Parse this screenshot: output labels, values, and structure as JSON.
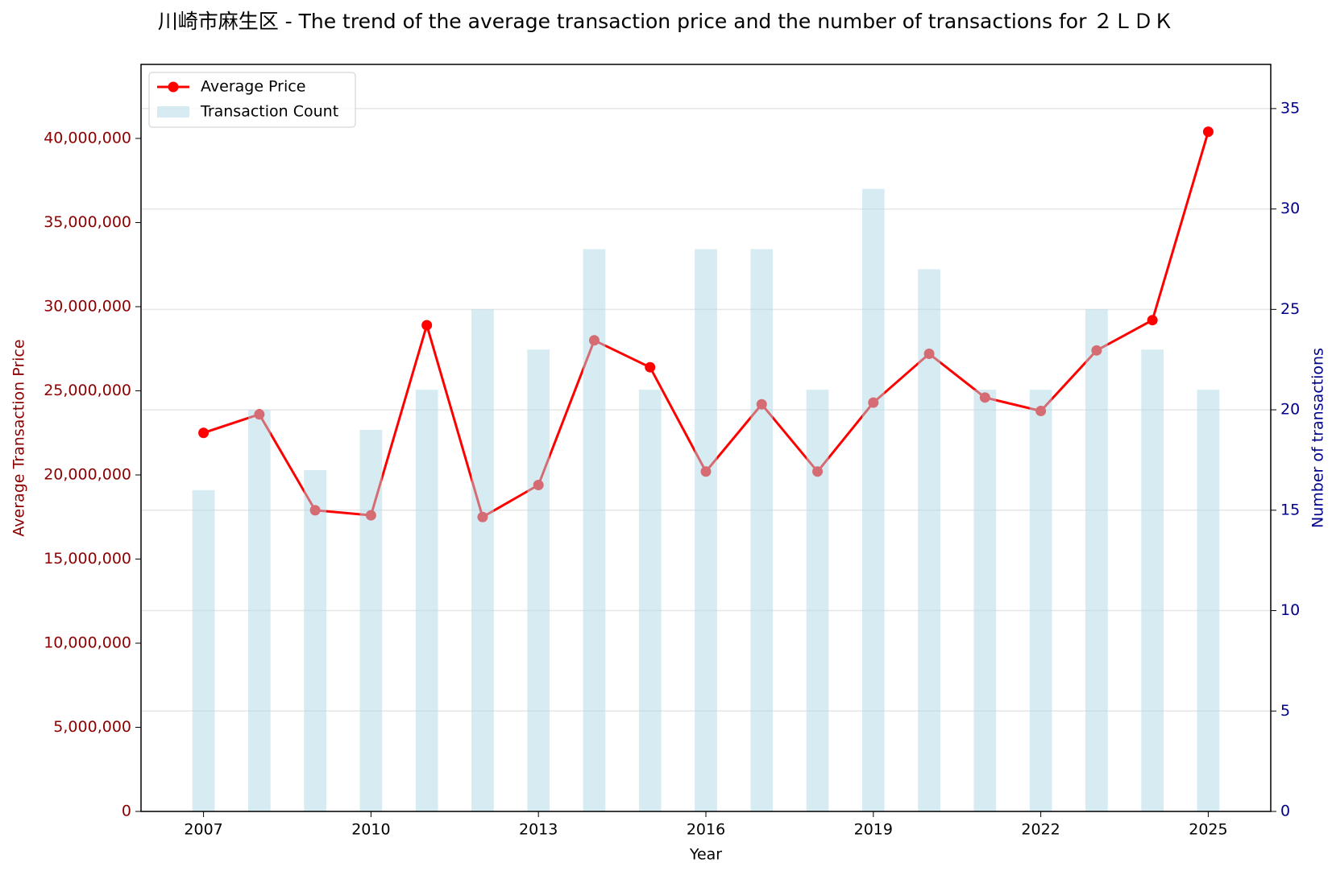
{
  "chart_data": {
    "type": "bar-line",
    "title": "川崎市麻生区 - The trend of the average transaction price and the number of transactions for ２ＬＤＫ",
    "x_label": "Year",
    "y_label": "Average Transaction Price",
    "y2_label": "Number of transactions",
    "x": [
      2007,
      2008,
      2009,
      2010,
      2011,
      2012,
      2013,
      2014,
      2015,
      2016,
      2017,
      2018,
      2019,
      2020,
      2021,
      2022,
      2023,
      2024,
      2025
    ],
    "series": [
      {
        "name": "Average Price",
        "type": "line",
        "color": "#ff0000",
        "values": [
          22500000,
          23600000,
          17900000,
          17600000,
          28900000,
          17500000,
          19400000,
          28000000,
          26400000,
          20200000,
          24200000,
          20200000,
          24300000,
          27200000,
          24600000,
          23800000,
          27400000,
          29200000,
          40400000
        ]
      },
      {
        "name": "Transaction Count",
        "type": "bar",
        "axis": "y2",
        "color": "#add8e6",
        "values": [
          16,
          20,
          17,
          19,
          21,
          25,
          23,
          28,
          21,
          28,
          28,
          21,
          31,
          27,
          21,
          21,
          25,
          23,
          21
        ]
      }
    ],
    "xlim": [
      2005.88,
      2026.12
    ],
    "xticks": [
      2007,
      2010,
      2013,
      2016,
      2019,
      2022,
      2025
    ],
    "ylim": [
      0,
      44400000
    ],
    "yticks": [
      0,
      {
        "value": 5000000,
        "label": "5,000,000"
      },
      {
        "value": 10000000,
        "label": "10,000,000"
      },
      {
        "value": 15000000,
        "label": "15,000,000"
      },
      {
        "value": 20000000,
        "label": "20,000,000"
      },
      {
        "value": 25000000,
        "label": "25,000,000"
      },
      {
        "value": 30000000,
        "label": "30,000,000"
      },
      {
        "value": 35000000,
        "label": "35,000,000"
      },
      {
        "value": 40000000,
        "label": "40,000,000"
      }
    ],
    "y2lim": [
      0,
      37.2
    ],
    "y2ticks": [
      0,
      5,
      10,
      15,
      20,
      25,
      30,
      35
    ],
    "grid": "y2",
    "legend": "upper-left"
  }
}
